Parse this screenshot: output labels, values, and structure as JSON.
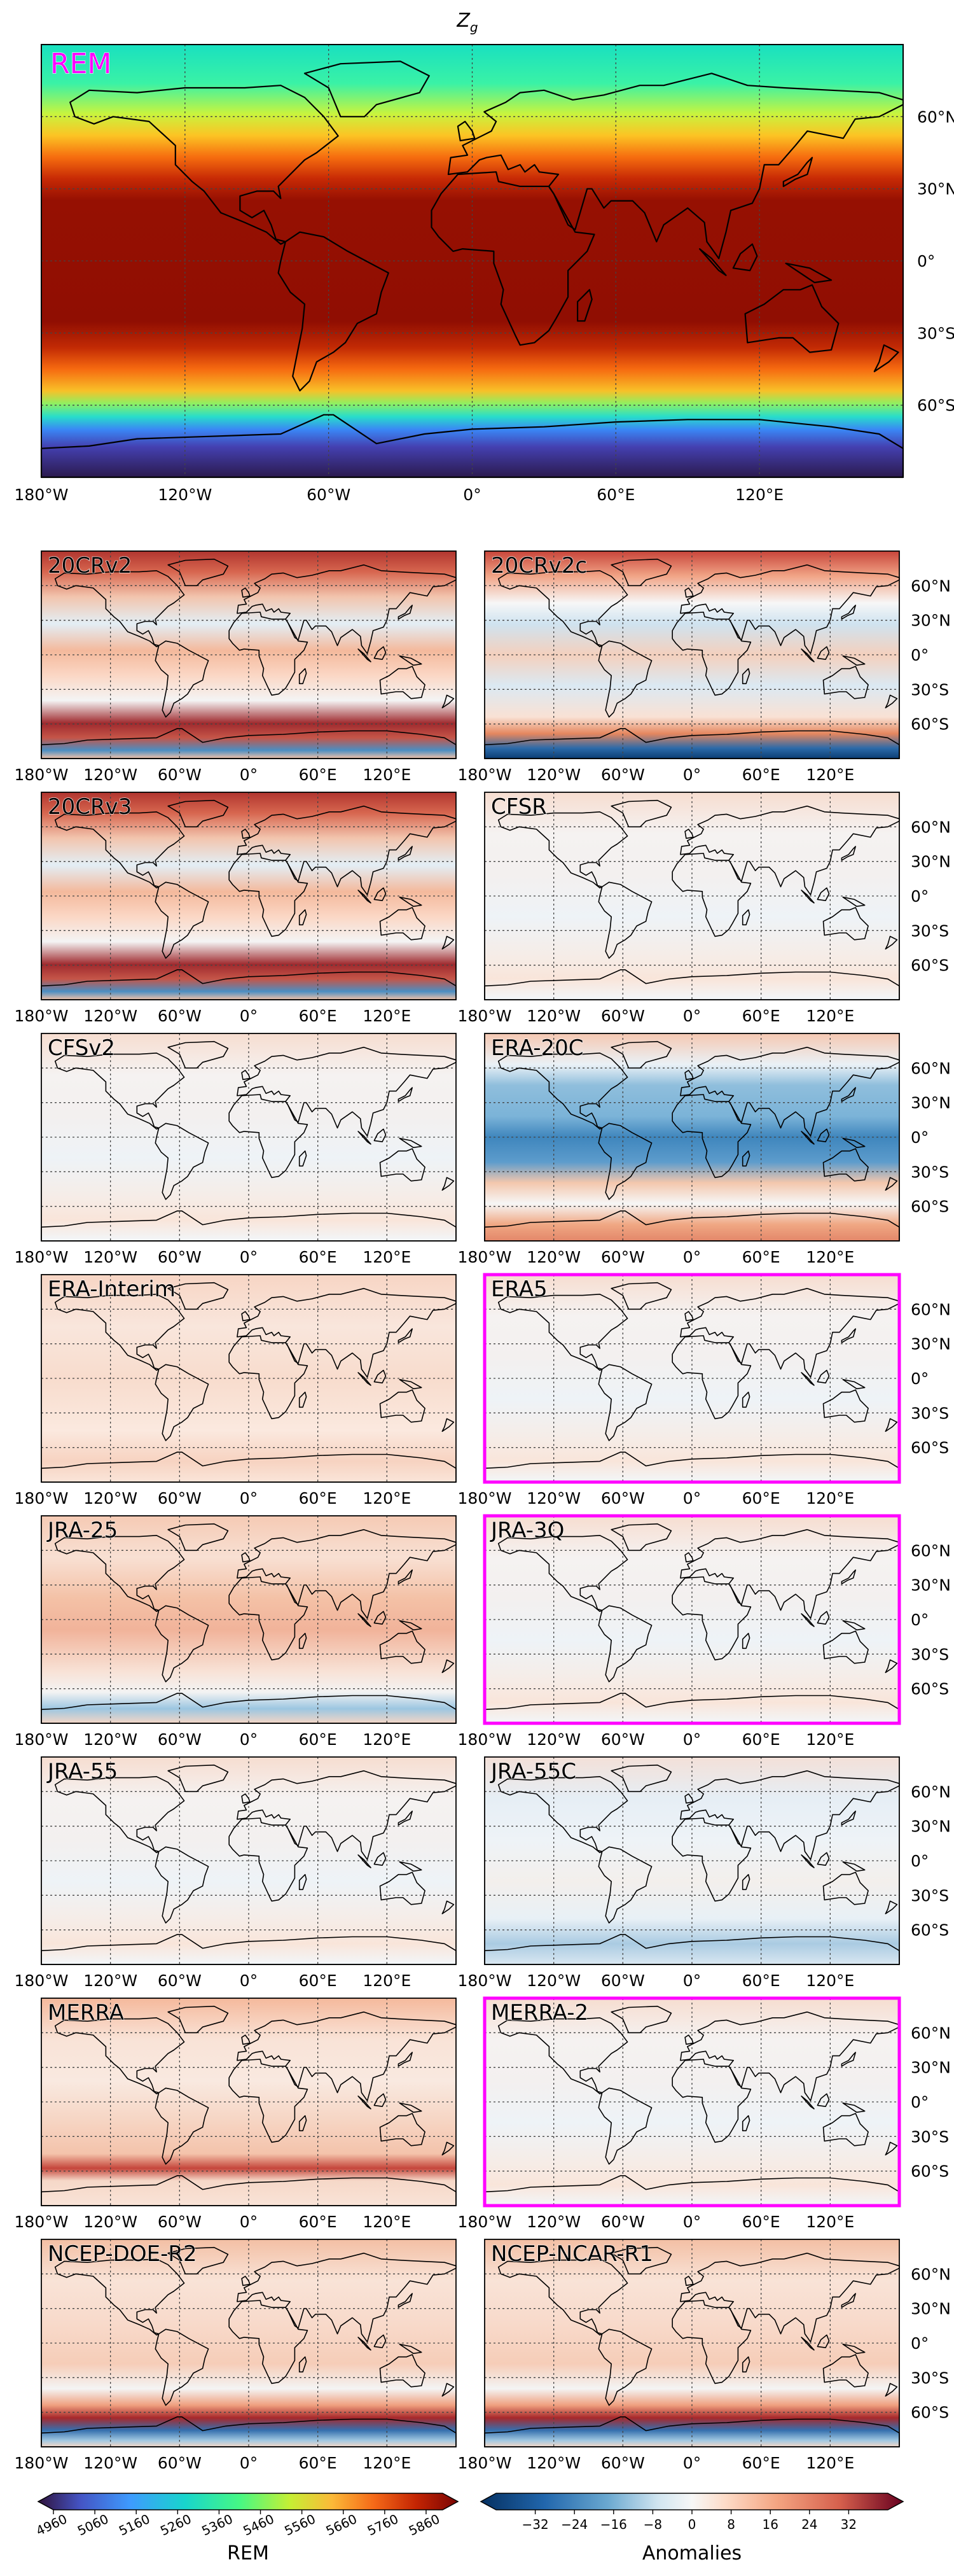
{
  "figure": {
    "title_var": "Z",
    "title_sub": "g"
  },
  "main_panel": {
    "label": "REM",
    "label_color": "#ff00ff",
    "lat_ticks": [
      "60°N",
      "30°N",
      "0°",
      "30°S",
      "60°S"
    ],
    "lon_ticks": [
      "180°W",
      "120°W",
      "60°W",
      "0°",
      "60°E",
      "120°E"
    ]
  },
  "small_lat_ticks": [
    "60°N",
    "30°N",
    "0°",
    "30°S",
    "60°S"
  ],
  "small_lon_ticks": [
    "180°W",
    "120°W",
    "60°W",
    "0°",
    "60°E",
    "120°E"
  ],
  "panels": [
    {
      "name": "20CRv2",
      "highlight": false,
      "pattern": "strong-warm"
    },
    {
      "name": "20CRv2c",
      "highlight": false,
      "pattern": "warm-north-cold-south"
    },
    {
      "name": "20CRv3",
      "highlight": false,
      "pattern": "strong-warm"
    },
    {
      "name": "CFSR",
      "highlight": false,
      "pattern": "near-zero"
    },
    {
      "name": "CFSv2",
      "highlight": false,
      "pattern": "near-zero"
    },
    {
      "name": "ERA-20C",
      "highlight": false,
      "pattern": "cold-tropics"
    },
    {
      "name": "ERA-Interim",
      "highlight": false,
      "pattern": "weak-warm"
    },
    {
      "name": "ERA5",
      "highlight": true,
      "pattern": "near-zero"
    },
    {
      "name": "JRA-25",
      "highlight": false,
      "pattern": "weak-warm-cold-south"
    },
    {
      "name": "JRA-3Q",
      "highlight": true,
      "pattern": "near-zero"
    },
    {
      "name": "JRA-55",
      "highlight": false,
      "pattern": "near-zero"
    },
    {
      "name": "JRA-55C",
      "highlight": false,
      "pattern": "weak-cold"
    },
    {
      "name": "MERRA",
      "highlight": false,
      "pattern": "warm-south-spot"
    },
    {
      "name": "MERRA-2",
      "highlight": true,
      "pattern": "near-zero"
    },
    {
      "name": "NCEP-DOE-R2",
      "highlight": false,
      "pattern": "warm-south-band"
    },
    {
      "name": "NCEP-NCAR-R1",
      "highlight": false,
      "pattern": "warm-south-band"
    }
  ],
  "colorbar_rem": {
    "label": "REM",
    "ticks": [
      "4960",
      "5060",
      "5160",
      "5260",
      "5360",
      "5460",
      "5560",
      "5660",
      "5760",
      "5860"
    ],
    "range": [
      4960,
      5900
    ]
  },
  "colorbar_anom": {
    "label": "Anomalies",
    "ticks": [
      "−32",
      "−24",
      "−16",
      "−8",
      "0",
      "8",
      "16",
      "24",
      "32"
    ],
    "range": [
      -40,
      40
    ]
  },
  "colors": {
    "highlight": "#ff00ff",
    "coast": "#000000"
  }
}
